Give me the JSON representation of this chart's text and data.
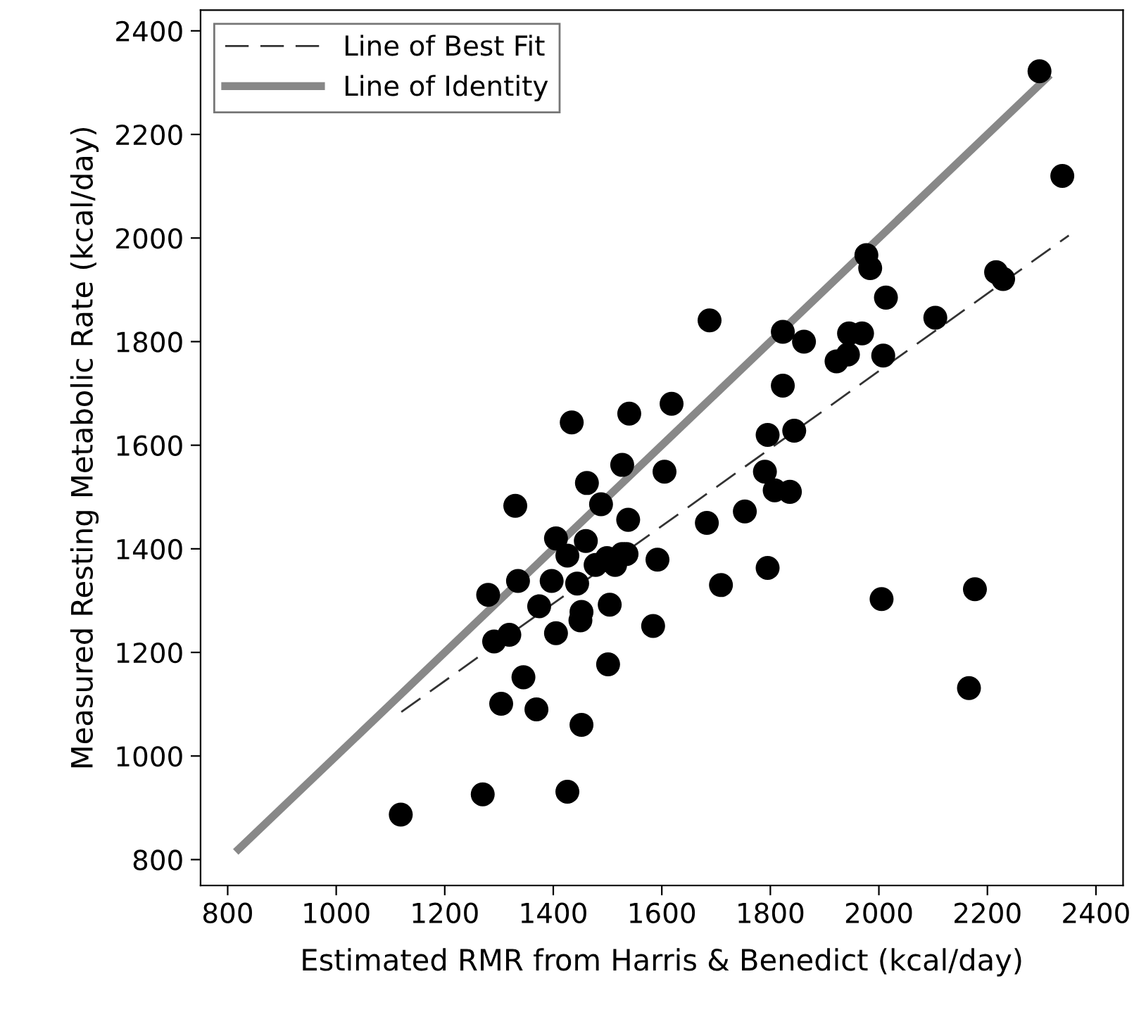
{
  "chart_data": {
    "type": "scatter",
    "xlabel": "Estimated RMR from Harris & Benedict (kcal/day)",
    "ylabel": "Measured Resting Metabolic Rate (kcal/day)",
    "xlim": [
      750,
      2450
    ],
    "ylim": [
      750,
      2440
    ],
    "xticks": [
      800,
      1000,
      1200,
      1400,
      1600,
      1800,
      2000,
      2200,
      2400
    ],
    "yticks": [
      800,
      1000,
      1200,
      1400,
      1600,
      1800,
      2000,
      2200,
      2400
    ],
    "grid": false,
    "legend": "top left",
    "series": [
      {
        "type": "line",
        "name": "Line of Best Fit",
        "color": "#333333",
        "line_style": "dashed",
        "x": [
          1120,
          2350
        ],
        "values": [
          1085,
          2005
        ]
      },
      {
        "type": "line",
        "name": "Line of Identity",
        "color": "#888888",
        "line_style": "solid",
        "x": [
          820,
          2310
        ],
        "values": [
          820,
          2310
        ]
      },
      {
        "marker": "circle",
        "color": "#000000",
        "x": [
          1119,
          1270,
          1426,
          1304,
          1369,
          1452,
          1345,
          1501,
          1291,
          1319,
          1405,
          1584,
          1450,
          1452,
          1374,
          1504,
          1280,
          1335,
          1397,
          1444,
          1478,
          1514,
          1527,
          1499,
          1535,
          1592,
          1426,
          1405,
          1460,
          1538,
          1330,
          1488,
          1462,
          1527,
          1605,
          1683,
          1753,
          1709,
          1795,
          1790,
          1808,
          1836,
          1795,
          1844,
          1434,
          1540,
          1618,
          1823,
          1688,
          1823,
          1862,
          2013,
          1945,
          1969,
          1922,
          1943,
          2008,
          2104,
          2216,
          2229,
          2005,
          2177,
          2166,
          2296,
          2338,
          1977,
          1984
        ],
        "values": [
          887,
          926,
          931,
          1101,
          1090,
          1060,
          1152,
          1177,
          1221,
          1234,
          1237,
          1251,
          1262,
          1278,
          1289,
          1292,
          1311,
          1338,
          1338,
          1333,
          1369,
          1369,
          1390,
          1382,
          1390,
          1379,
          1387,
          1420,
          1415,
          1456,
          1483,
          1486,
          1527,
          1562,
          1549,
          1450,
          1472,
          1330,
          1363,
          1549,
          1513,
          1510,
          1620,
          1628,
          1644,
          1661,
          1680,
          1715,
          1841,
          1819,
          1800,
          1885,
          1816,
          1816,
          1762,
          1775,
          1773,
          1846,
          1934,
          1921,
          1303,
          1322,
          1131,
          2322,
          2120,
          1967,
          1942
        ]
      }
    ]
  }
}
